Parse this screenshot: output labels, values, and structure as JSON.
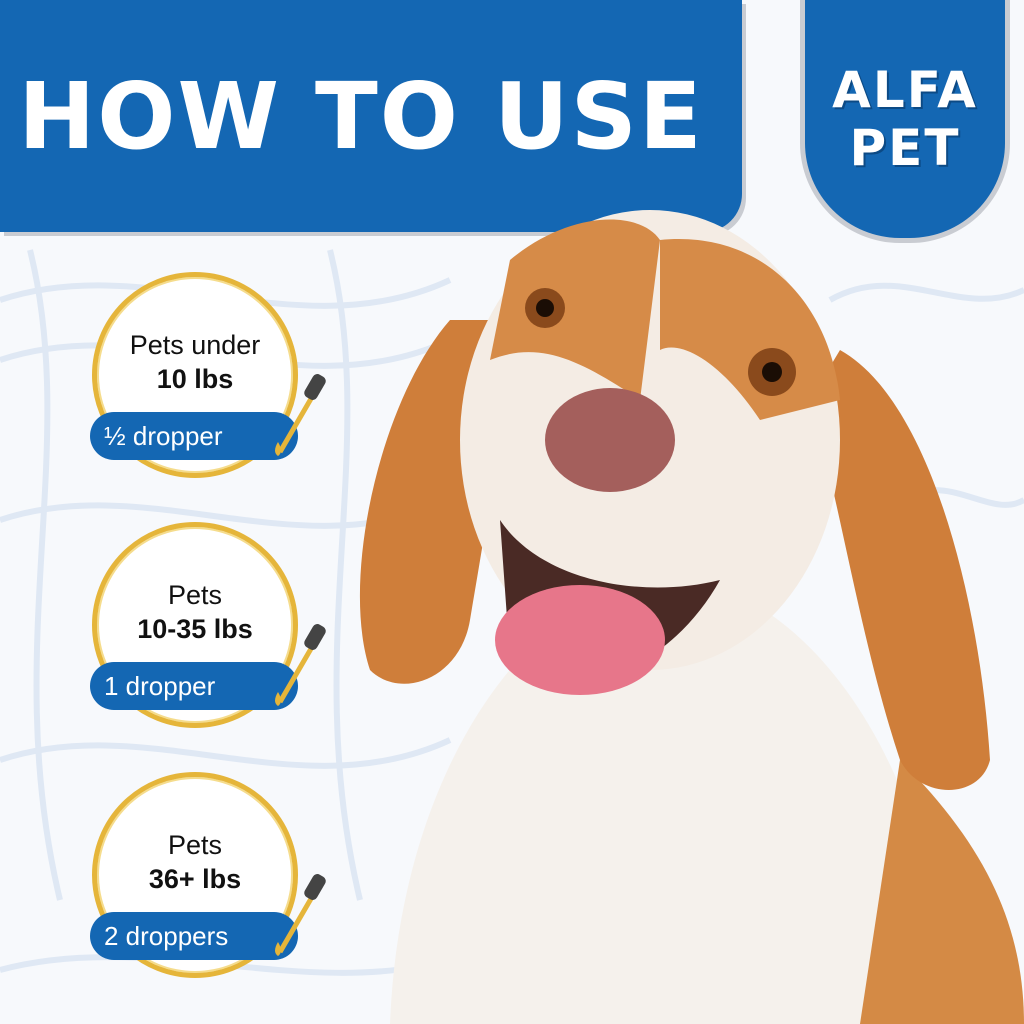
{
  "header": {
    "title": "HOW TO USE"
  },
  "logo": {
    "line1": "ALFA",
    "line2": "PET",
    "text": "ALFA PET"
  },
  "colors": {
    "brand_blue": "#1467b3",
    "gold": "#e5b53a"
  },
  "dosages": [
    {
      "line1": "Pets under",
      "line2": "10 lbs",
      "amount": "½ dropper",
      "icon": "dropper-icon"
    },
    {
      "line1": "Pets",
      "line2": "10-35 lbs",
      "amount": "1 dropper",
      "icon": "dropper-icon"
    },
    {
      "line1": "Pets",
      "line2": "36+ lbs",
      "amount": "2 droppers",
      "icon": "dropper-icon"
    }
  ]
}
